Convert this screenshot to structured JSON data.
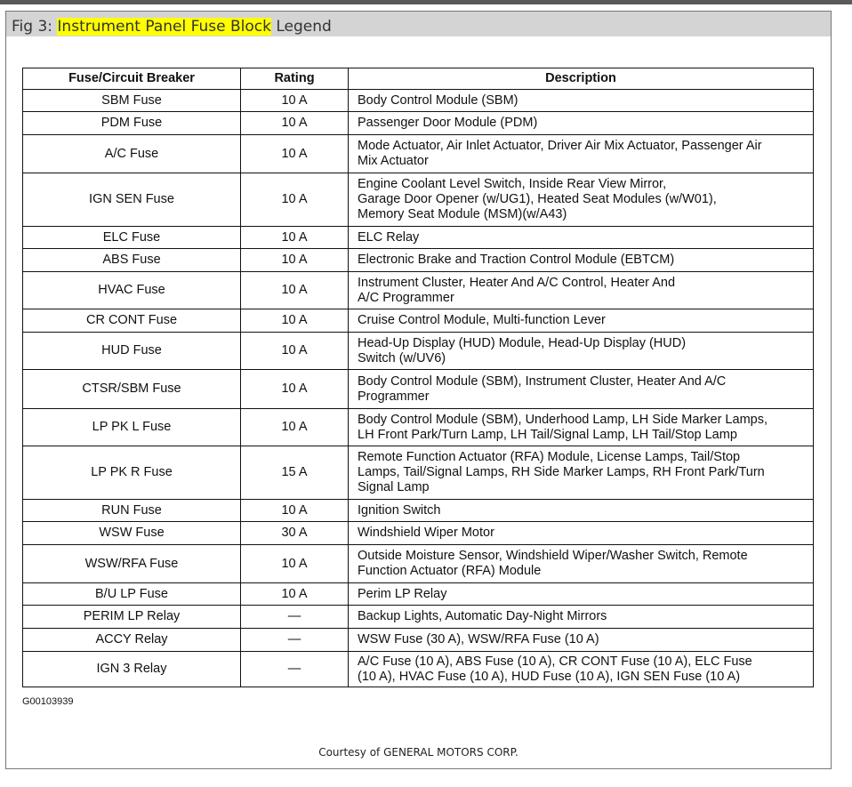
{
  "title": {
    "prefix": "Fig 3: ",
    "highlighted": "Instrument Panel Fuse Block",
    "suffix": " Legend",
    "highlight_color": "#ffff00"
  },
  "table": {
    "headers": [
      "Fuse/Circuit Breaker",
      "Rating",
      "Description"
    ],
    "rows": [
      {
        "fuse": "SBM Fuse",
        "rating": "10 A",
        "description": "Body Control Module (SBM)"
      },
      {
        "fuse": "PDM Fuse",
        "rating": "10 A",
        "description": "Passenger Door Module (PDM)"
      },
      {
        "fuse": "A/C Fuse",
        "rating": "10 A",
        "description": "Mode Actuator, Air Inlet Actuator, Driver Air Mix Actuator, Passenger Air\nMix Actuator"
      },
      {
        "fuse": "IGN SEN Fuse",
        "rating": "10 A",
        "description": "Engine Coolant Level Switch, Inside Rear View Mirror,\nGarage Door Opener (w/UG1), Heated Seat Modules (w/W01),\nMemory Seat Module (MSM)(w/A43)"
      },
      {
        "fuse": "ELC Fuse",
        "rating": "10 A",
        "description": "ELC Relay"
      },
      {
        "fuse": "ABS Fuse",
        "rating": "10 A",
        "description": "Electronic Brake and Traction Control Module (EBTCM)"
      },
      {
        "fuse": "HVAC Fuse",
        "rating": "10 A",
        "description": "Instrument Cluster, Heater And A/C Control, Heater And\nA/C Programmer"
      },
      {
        "fuse": "CR CONT Fuse",
        "rating": "10 A",
        "description": "Cruise Control Module, Multi-function Lever"
      },
      {
        "fuse": "HUD Fuse",
        "rating": "10 A",
        "description": "Head-Up Display (HUD) Module, Head-Up Display (HUD)\nSwitch (w/UV6)"
      },
      {
        "fuse": "CTSR/SBM Fuse",
        "rating": "10 A",
        "description": "Body Control Module (SBM), Instrument Cluster, Heater And A/C\nProgrammer"
      },
      {
        "fuse": "LP PK L Fuse",
        "rating": "10 A",
        "description": "Body Control Module (SBM), Underhood Lamp, LH Side Marker Lamps,\nLH Front Park/Turn Lamp, LH Tail/Signal Lamp, LH Tail/Stop Lamp"
      },
      {
        "fuse": "LP PK R Fuse",
        "rating": "15 A",
        "description": "Remote Function Actuator (RFA) Module, License Lamps, Tail/Stop\nLamps, Tail/Signal Lamps, RH Side Marker Lamps, RH Front Park/Turn\nSignal Lamp"
      },
      {
        "fuse": "RUN Fuse",
        "rating": "10 A",
        "description": "Ignition Switch"
      },
      {
        "fuse": "WSW Fuse",
        "rating": "30 A",
        "description": "Windshield Wiper Motor"
      },
      {
        "fuse": "WSW/RFA Fuse",
        "rating": "10 A",
        "description": "Outside Moisture Sensor, Windshield Wiper/Washer Switch, Remote\nFunction Actuator (RFA) Module"
      },
      {
        "fuse": "B/U LP Fuse",
        "rating": "10 A",
        "description": "Perim LP Relay"
      },
      {
        "fuse": "PERIM LP Relay",
        "rating": "—",
        "description": "Backup Lights, Automatic Day-Night Mirrors"
      },
      {
        "fuse": "ACCY Relay",
        "rating": "—",
        "description": "WSW Fuse (30 A), WSW/RFA Fuse (10 A)"
      },
      {
        "fuse": "IGN 3 Relay",
        "rating": "—",
        "description": "A/C Fuse (10 A), ABS Fuse (10 A), CR CONT Fuse (10 A), ELC Fuse\n(10 A), HVAC Fuse (10 A), HUD Fuse (10 A), IGN SEN Fuse (10 A)"
      }
    ]
  },
  "figure_code": "G00103939",
  "courtesy": "Courtesy of GENERAL MOTORS CORP."
}
